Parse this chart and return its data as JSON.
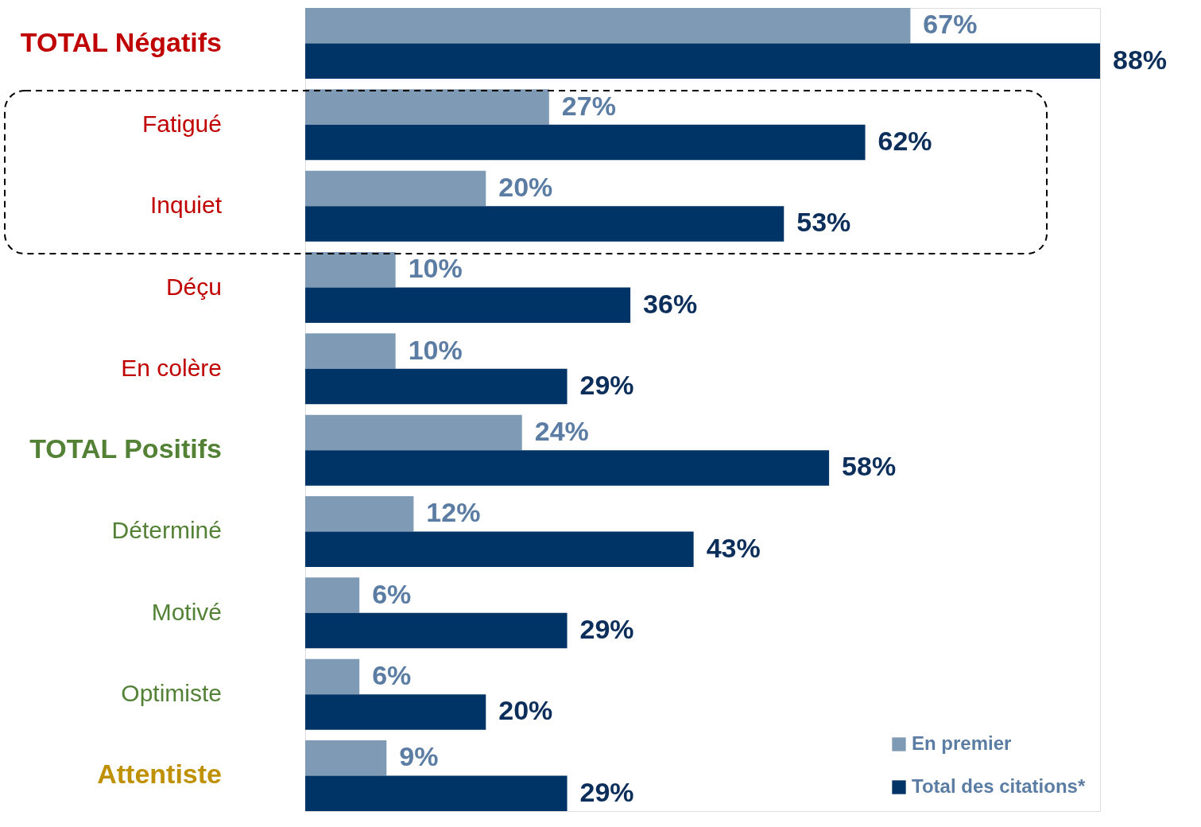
{
  "chart_data": {
    "type": "bar",
    "orientation": "horizontal",
    "categories": [
      "TOTAL Négatifs",
      "Fatigué",
      "Inquiet",
      "Déçu",
      "En colère",
      "TOTAL Positifs",
      "Déterminé",
      "Motivé",
      "Optimiste",
      "Attentiste"
    ],
    "series": [
      {
        "name": "En premier",
        "color": "#7f9ab5",
        "values": [
          67,
          27,
          20,
          10,
          10,
          24,
          12,
          6,
          6,
          9
        ],
        "value_labels": [
          "67%",
          "27%",
          "20%",
          "10%",
          "10%",
          "24%",
          "12%",
          "6%",
          "6%",
          "9%"
        ]
      },
      {
        "name": "Total des citations*",
        "color": "#003366",
        "values": [
          88,
          62,
          53,
          36,
          29,
          58,
          43,
          29,
          20,
          29
        ],
        "value_labels": [
          "88%",
          "62%",
          "53%",
          "36%",
          "29%",
          "58%",
          "43%",
          "29%",
          "20%",
          "29%"
        ]
      }
    ],
    "legend": "bottom right"
  }
}
